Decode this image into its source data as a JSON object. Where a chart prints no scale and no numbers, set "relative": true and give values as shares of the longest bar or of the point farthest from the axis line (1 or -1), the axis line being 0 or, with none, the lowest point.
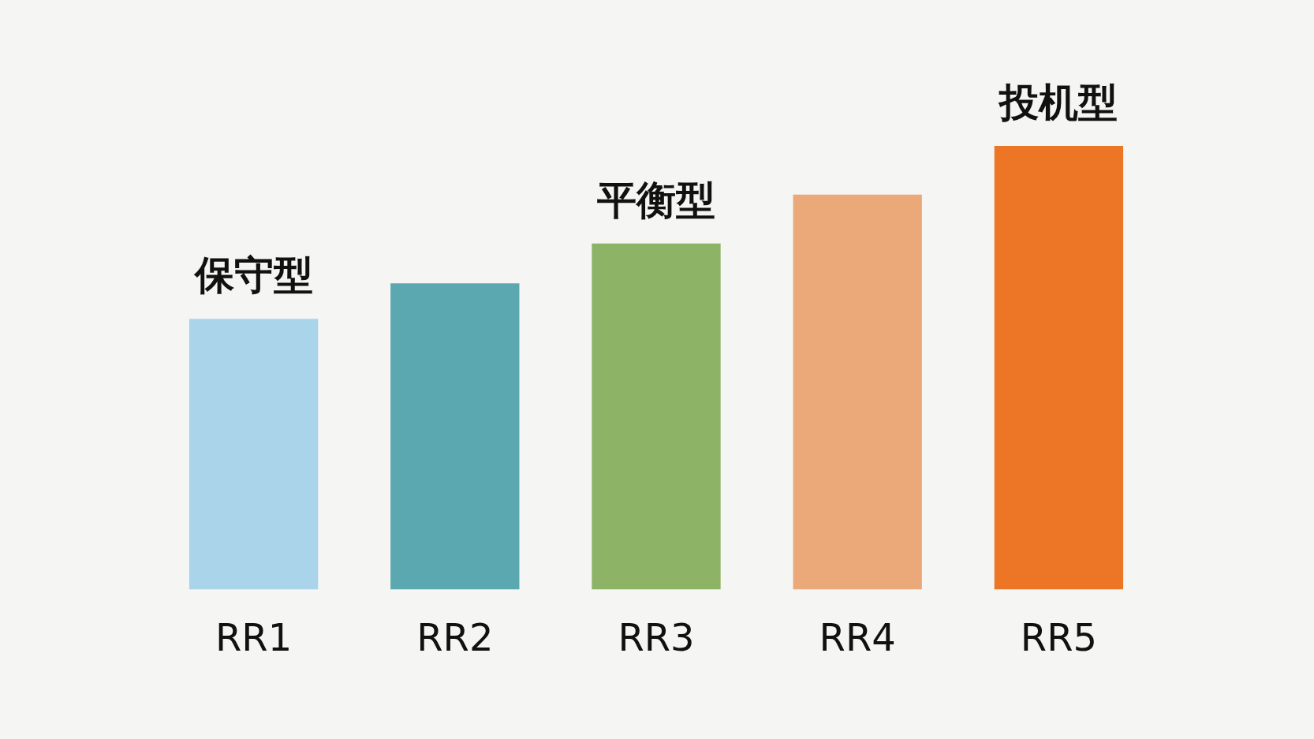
{
  "chart_data": {
    "type": "bar",
    "relative": true,
    "categories": [
      "RR1",
      "RR2",
      "RR3",
      "RR4",
      "RR5"
    ],
    "values": [
      0.61,
      0.69,
      0.78,
      0.89,
      1
    ],
    "colors": [
      "#a9d4ea",
      "#5ba8b0",
      "#8db366",
      "#eba878",
      "#ec7625"
    ],
    "annotations": [
      {
        "text": "保守型",
        "x": "RR1",
        "y": 0.61
      },
      {
        "text": "平衡型",
        "x": "RR3",
        "y": 0.78
      },
      {
        "text": "投机型",
        "x": "RR5",
        "y": 1
      }
    ],
    "grid": false,
    "legend": false
  }
}
